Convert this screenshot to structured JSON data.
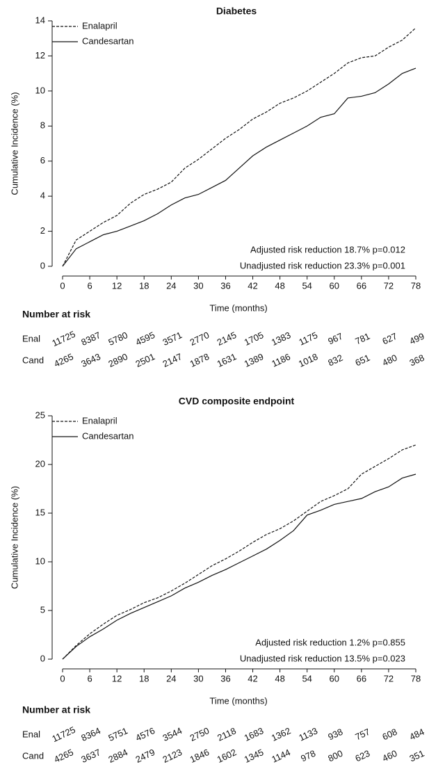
{
  "chart_data": [
    {
      "type": "line",
      "title": "Diabetes",
      "xlabel": "Time (months)",
      "ylabel": "Cumulative Incidence (%)",
      "x": [
        0,
        3,
        6,
        9,
        12,
        15,
        18,
        21,
        24,
        27,
        30,
        33,
        36,
        39,
        42,
        45,
        48,
        51,
        54,
        57,
        60,
        63,
        66,
        69,
        72,
        75,
        78
      ],
      "series": [
        {
          "name": "Enalapril",
          "color": "#111111",
          "line_style": "dashed",
          "values": [
            0,
            1.5,
            2.0,
            2.5,
            2.9,
            3.6,
            4.1,
            4.4,
            4.8,
            5.6,
            6.1,
            6.7,
            7.3,
            7.8,
            8.4,
            8.8,
            9.3,
            9.6,
            10.0,
            10.5,
            11.0,
            11.6,
            11.9,
            12.0,
            12.5,
            12.9,
            13.6
          ]
        },
        {
          "name": "Candesartan",
          "color": "#111111",
          "line_style": "solid",
          "values": [
            0,
            1.0,
            1.4,
            1.8,
            2.0,
            2.3,
            2.6,
            3.0,
            3.5,
            3.9,
            4.1,
            4.5,
            4.9,
            5.6,
            6.3,
            6.8,
            7.2,
            7.6,
            8.0,
            8.5,
            8.7,
            9.6,
            9.7,
            9.9,
            10.4,
            11.0,
            11.3
          ]
        }
      ],
      "xlim": [
        0,
        78
      ],
      "xticks": [
        0,
        6,
        12,
        18,
        24,
        30,
        36,
        42,
        48,
        54,
        60,
        66,
        72,
        78
      ],
      "ylim": [
        0,
        14
      ],
      "yticks": [
        0,
        2,
        4,
        6,
        8,
        10,
        12,
        14
      ],
      "legend": "upper left",
      "annotations": [
        "Adjusted risk reduction 18.7% p=0.012",
        "Unadjusted risk reduction 23.3% p=0.001"
      ],
      "risk_table": {
        "title": "Number at risk",
        "rows": [
          {
            "name": "Enal",
            "values": [
              "11725",
              "8387",
              "5780",
              "4595",
              "3571",
              "2770",
              "2145",
              "1705",
              "1383",
              "1175",
              "967",
              "781",
              "627",
              "499"
            ]
          },
          {
            "name": "Cand",
            "values": [
              "4265",
              "3643",
              "2890",
              "2501",
              "2147",
              "1878",
              "1631",
              "1389",
              "1186",
              "1018",
              "832",
              "651",
              "480",
              "368"
            ]
          }
        ]
      }
    },
    {
      "type": "line",
      "title": "CVD composite endpoint",
      "xlabel": "Time (months)",
      "ylabel": "Cumulative Incidence (%)",
      "x": [
        0,
        3,
        6,
        9,
        12,
        15,
        18,
        21,
        24,
        27,
        30,
        33,
        36,
        39,
        42,
        45,
        48,
        51,
        54,
        57,
        60,
        63,
        66,
        69,
        72,
        75,
        78
      ],
      "series": [
        {
          "name": "Enalapril",
          "color": "#111111",
          "line_style": "dashed",
          "values": [
            0,
            1.4,
            2.6,
            3.6,
            4.5,
            5.1,
            5.8,
            6.3,
            7.0,
            7.8,
            8.7,
            9.6,
            10.3,
            11.1,
            12.0,
            12.8,
            13.4,
            14.2,
            15.2,
            16.2,
            16.8,
            17.5,
            19.0,
            19.8,
            20.6,
            21.5,
            22.0
          ]
        },
        {
          "name": "Candesartan",
          "color": "#111111",
          "line_style": "solid",
          "values": [
            0,
            1.3,
            2.3,
            3.1,
            4.0,
            4.7,
            5.3,
            5.9,
            6.5,
            7.3,
            7.9,
            8.6,
            9.2,
            9.9,
            10.6,
            11.3,
            12.2,
            13.2,
            14.8,
            15.3,
            15.9,
            16.2,
            16.5,
            17.2,
            17.7,
            18.6,
            19.0
          ]
        }
      ],
      "xlim": [
        0,
        78
      ],
      "xticks": [
        0,
        6,
        12,
        18,
        24,
        30,
        36,
        42,
        48,
        54,
        60,
        66,
        72,
        78
      ],
      "ylim": [
        0,
        25
      ],
      "yticks": [
        0,
        5,
        10,
        15,
        20,
        25
      ],
      "legend": "upper left",
      "annotations": [
        "Adjusted risk reduction 1.2% p=0.855",
        "Unadjusted risk reduction 13.5% p=0.023"
      ],
      "risk_table": {
        "title": "Number at risk",
        "rows": [
          {
            "name": "Enal",
            "values": [
              "11725",
              "8364",
              "5751",
              "4576",
              "3544",
              "2750",
              "2118",
              "1683",
              "1362",
              "1133",
              "938",
              "757",
              "608",
              "484"
            ]
          },
          {
            "name": "Cand",
            "values": [
              "4265",
              "3637",
              "2884",
              "2479",
              "2123",
              "1846",
              "1602",
              "1345",
              "1144",
              "978",
              "800",
              "623",
              "460",
              "351"
            ]
          }
        ]
      }
    }
  ]
}
